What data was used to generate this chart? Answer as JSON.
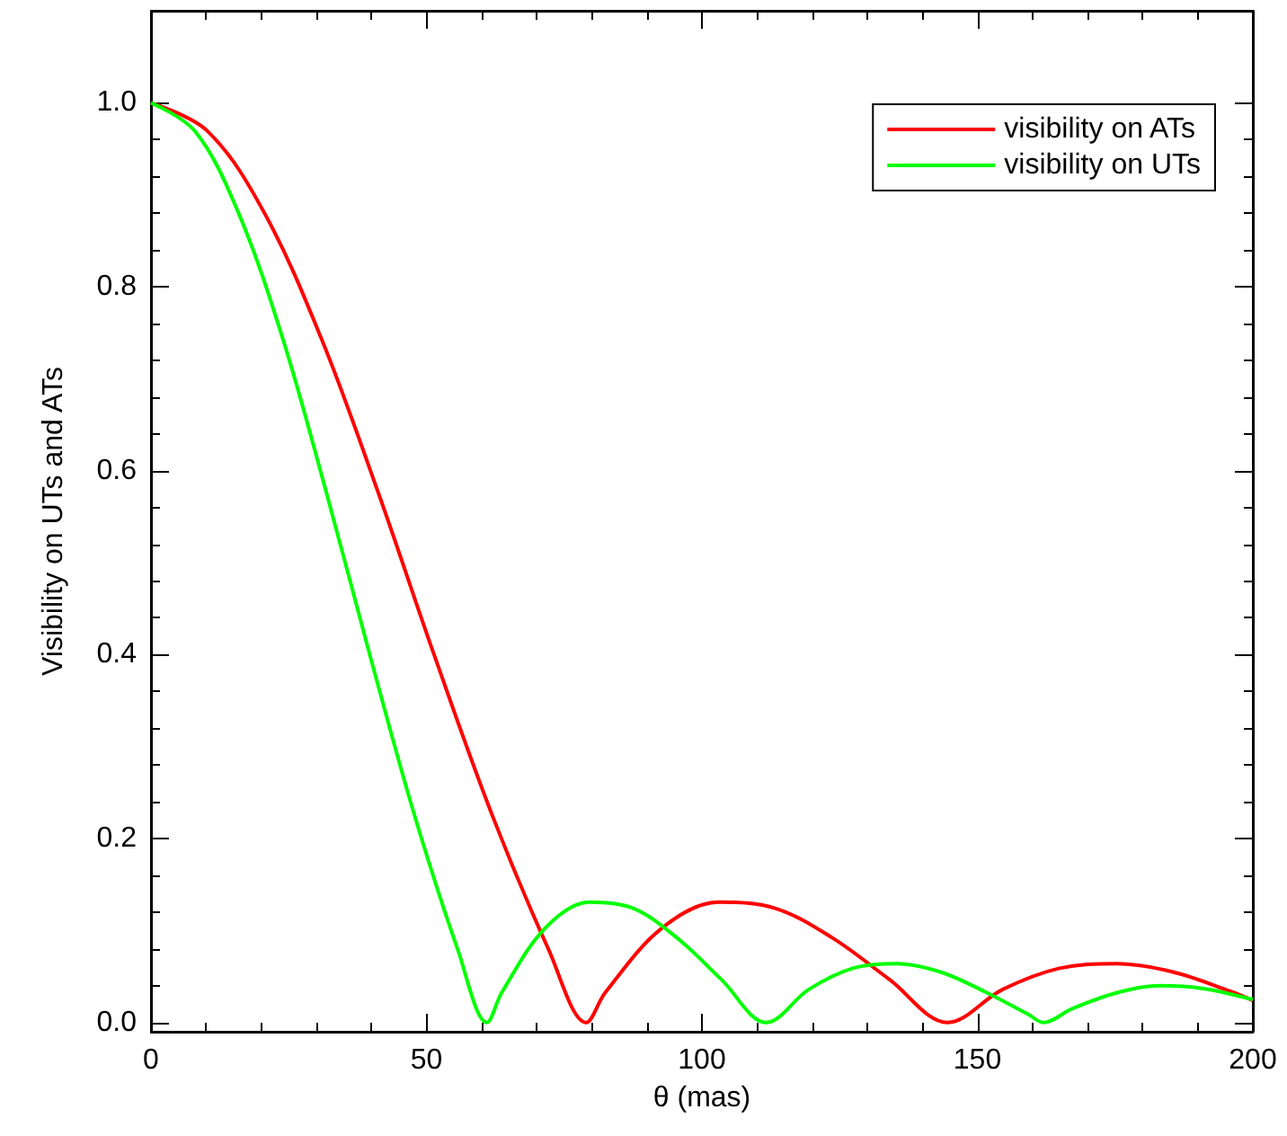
{
  "chart_data": {
    "type": "line",
    "xlabel": "θ (mas)",
    "ylabel": "Visibility on UTs and ATs",
    "xlim": [
      0,
      200
    ],
    "xticks": [
      0,
      50,
      100,
      150,
      200
    ],
    "ylim": [
      -0.01,
      1.1
    ],
    "yticks": [
      {
        "value": 0,
        "label": "0.0"
      },
      {
        "value": 0.2,
        "label": "0.2"
      },
      {
        "value": 0.4,
        "label": "0.4"
      },
      {
        "value": 0.6,
        "label": "0.6"
      },
      {
        "value": 0.8,
        "label": "0.8"
      },
      {
        "value": 1,
        "label": "1.0"
      }
    ],
    "grid": false,
    "legend": "top right",
    "marker": "none",
    "line_style": "solid",
    "series": [
      {
        "name": "visibility on ATs",
        "color": "#ff0000",
        "x": [
          0,
          10.3,
          20.6,
          30.9,
          41.2,
          51.5,
          61.9,
          72.2,
          79,
          82.5,
          92.8,
          103.1,
          113.4,
          123.7,
          134,
          144.6,
          154.6,
          164.9,
          175.2,
          185.5,
          195.9,
          200
        ],
        "values": [
          1,
          0.969,
          0.88,
          0.744,
          0.577,
          0.398,
          0.226,
          0.079,
          0,
          0.033,
          0.103,
          0.131,
          0.124,
          0.092,
          0.047,
          0,
          0.036,
          0.059,
          0.064,
          0.055,
          0.034,
          0.024
        ]
      },
      {
        "name": "visibility on UTs",
        "color": "#00ff00",
        "x": [
          0,
          8,
          15.9,
          23.9,
          31.8,
          39.8,
          47.8,
          55.7,
          61,
          63.7,
          71.6,
          79.6,
          87.6,
          95.5,
          103.5,
          111.7,
          119.4,
          127.4,
          135.3,
          143.3,
          151.2,
          159.2,
          162,
          167.2,
          175.1,
          183.1,
          191,
          200
        ],
        "values": [
          1,
          0.969,
          0.88,
          0.744,
          0.577,
          0.398,
          0.226,
          0.079,
          0,
          0.033,
          0.103,
          0.131,
          0.124,
          0.092,
          0.047,
          0,
          0.036,
          0.059,
          0.064,
          0.055,
          0.034,
          0.009,
          0,
          0.015,
          0.032,
          0.04,
          0.037,
          0.025
        ]
      }
    ]
  }
}
